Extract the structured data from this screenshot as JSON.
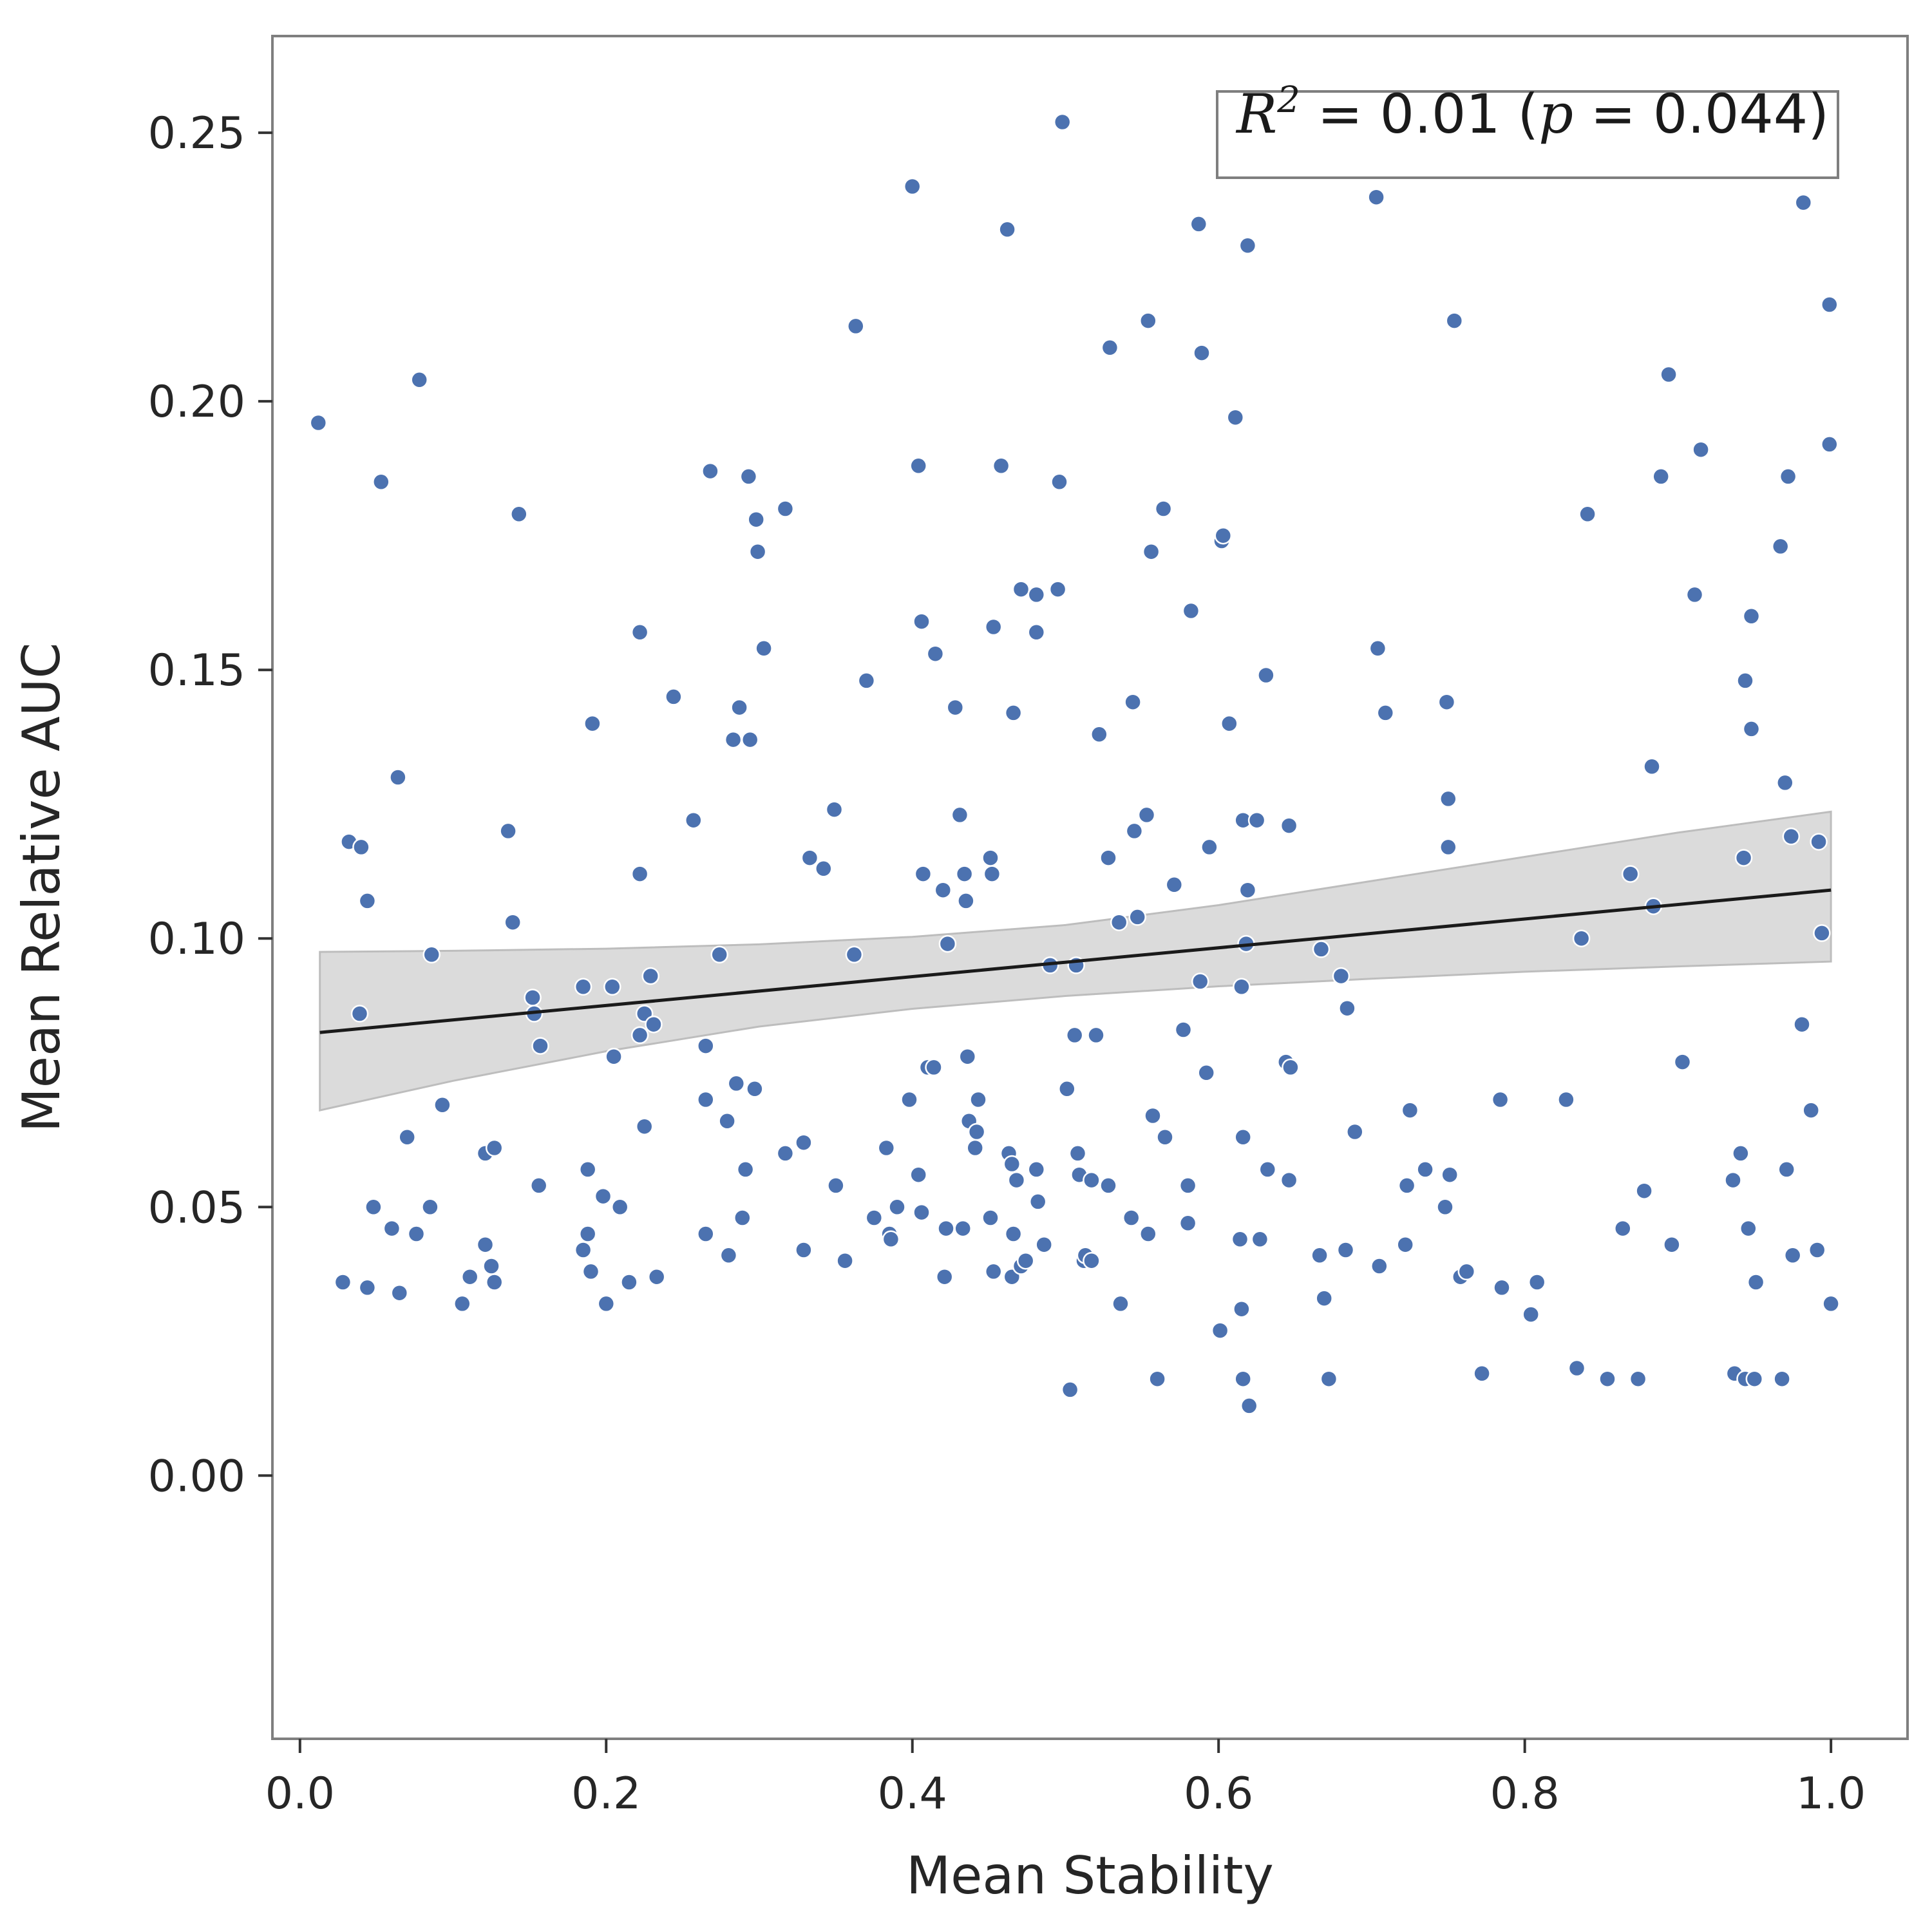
{
  "chart_data": {
    "type": "scatter",
    "title": "",
    "xlabel": "Mean Stability",
    "ylabel": "Mean Relative AUC",
    "xlim": [
      -0.018,
      1.05
    ],
    "ylim": [
      -0.049,
      0.268
    ],
    "xticks": [
      0.0,
      0.2,
      0.4,
      0.6,
      0.8,
      1.0
    ],
    "xtick_labels": [
      "0.0",
      "0.2",
      "0.4",
      "0.6",
      "0.8",
      "1.0"
    ],
    "yticks": [
      0.0,
      0.05,
      0.1,
      0.15,
      0.2,
      0.25
    ],
    "ytick_labels": [
      "0.00",
      "0.05",
      "0.10",
      "0.15",
      "0.20",
      "0.25"
    ],
    "grid": false,
    "colors": {
      "points": "#4c72b0",
      "fit_line": "#1a1a1a",
      "band": "#bdbdbd",
      "frame": "#7f7f7f"
    },
    "annotation": {
      "lhs": "R",
      "exponent": "2",
      "middle": " = 0.01 (",
      "p_symbol": "p",
      "rhs": " = 0.044)",
      "position": "top-right"
    },
    "regression": {
      "x": [
        0.013,
        1.0
      ],
      "y": [
        0.0825,
        0.109
      ],
      "ci_x": [
        0.013,
        0.1,
        0.2,
        0.3,
        0.4,
        0.5,
        0.6,
        0.7,
        0.8,
        0.9,
        1.0
      ],
      "ci_upper": [
        0.0975,
        0.0977,
        0.0981,
        0.0989,
        0.1003,
        0.1025,
        0.1062,
        0.1107,
        0.1152,
        0.1197,
        0.1236
      ],
      "ci_lower": [
        0.068,
        0.0735,
        0.079,
        0.0836,
        0.0869,
        0.0893,
        0.0911,
        0.0925,
        0.0938,
        0.0948,
        0.0957
      ]
    },
    "series": [
      {
        "points": [
          [
            0.012,
            0.196
          ],
          [
            0.078,
            0.204
          ],
          [
            0.053,
            0.185
          ],
          [
            0.143,
            0.179
          ],
          [
            0.032,
            0.118
          ],
          [
            0.04,
            0.117
          ],
          [
            0.044,
            0.107
          ],
          [
            0.064,
            0.13
          ],
          [
            0.136,
            0.12
          ],
          [
            0.139,
            0.103
          ],
          [
            0.086,
            0.097
          ],
          [
            0.039,
            0.086
          ],
          [
            0.093,
            0.069
          ],
          [
            0.07,
            0.063
          ],
          [
            0.121,
            0.06
          ],
          [
            0.127,
            0.061
          ],
          [
            0.156,
            0.054
          ],
          [
            0.048,
            0.05
          ],
          [
            0.085,
            0.05
          ],
          [
            0.06,
            0.046
          ],
          [
            0.076,
            0.045
          ],
          [
            0.121,
            0.043
          ],
          [
            0.125,
            0.039
          ],
          [
            0.111,
            0.037
          ],
          [
            0.028,
            0.036
          ],
          [
            0.044,
            0.035
          ],
          [
            0.065,
            0.034
          ],
          [
            0.106,
            0.032
          ],
          [
            0.127,
            0.036
          ],
          [
            0.152,
            0.089
          ],
          [
            0.153,
            0.086
          ],
          [
            0.157,
            0.08
          ],
          [
            0.185,
            0.091
          ],
          [
            0.204,
            0.091
          ],
          [
            0.205,
            0.078
          ],
          [
            0.222,
            0.082
          ],
          [
            0.225,
            0.086
          ],
          [
            0.229,
            0.093
          ],
          [
            0.231,
            0.084
          ],
          [
            0.225,
            0.065
          ],
          [
            0.191,
            0.14
          ],
          [
            0.222,
            0.157
          ],
          [
            0.222,
            0.112
          ],
          [
            0.244,
            0.145
          ],
          [
            0.257,
            0.122
          ],
          [
            0.268,
            0.187
          ],
          [
            0.274,
            0.097
          ],
          [
            0.265,
            0.08
          ],
          [
            0.265,
            0.07
          ],
          [
            0.279,
            0.066
          ],
          [
            0.185,
            0.042
          ],
          [
            0.188,
            0.045
          ],
          [
            0.188,
            0.057
          ],
          [
            0.198,
            0.052
          ],
          [
            0.209,
            0.05
          ],
          [
            0.19,
            0.038
          ],
          [
            0.2,
            0.032
          ],
          [
            0.215,
            0.036
          ],
          [
            0.233,
            0.037
          ],
          [
            0.265,
            0.045
          ],
          [
            0.28,
            0.041
          ],
          [
            0.289,
            0.048
          ],
          [
            0.291,
            0.057
          ],
          [
            0.285,
            0.073
          ],
          [
            0.297,
            0.072
          ],
          [
            0.287,
            0.143
          ],
          [
            0.283,
            0.137
          ],
          [
            0.294,
            0.137
          ],
          [
            0.293,
            0.186
          ],
          [
            0.298,
            0.178
          ],
          [
            0.299,
            0.172
          ],
          [
            0.303,
            0.154
          ],
          [
            0.317,
            0.18
          ],
          [
            0.317,
            0.06
          ],
          [
            0.329,
            0.062
          ],
          [
            0.329,
            0.042
          ],
          [
            0.333,
            0.115
          ],
          [
            0.342,
            0.113
          ],
          [
            0.349,
            0.124
          ],
          [
            0.35,
            0.054
          ],
          [
            0.356,
            0.04
          ],
          [
            0.362,
            0.097
          ],
          [
            0.363,
            0.214
          ],
          [
            0.37,
            0.148
          ],
          [
            0.375,
            0.048
          ],
          [
            0.383,
            0.061
          ],
          [
            0.385,
            0.045
          ],
          [
            0.386,
            0.044
          ],
          [
            0.39,
            0.05
          ],
          [
            0.398,
            0.07
          ],
          [
            0.4,
            0.24
          ],
          [
            0.404,
            0.188
          ],
          [
            0.406,
            0.159
          ],
          [
            0.407,
            0.112
          ],
          [
            0.404,
            0.056
          ],
          [
            0.406,
            0.049
          ],
          [
            0.41,
            0.076
          ],
          [
            0.414,
            0.076
          ],
          [
            0.415,
            0.153
          ],
          [
            0.42,
            0.109
          ],
          [
            0.421,
            0.037
          ],
          [
            0.422,
            0.046
          ],
          [
            0.423,
            0.099
          ],
          [
            0.428,
            0.143
          ],
          [
            0.431,
            0.123
          ],
          [
            0.434,
            0.112
          ],
          [
            0.435,
            0.107
          ],
          [
            0.436,
            0.078
          ],
          [
            0.437,
            0.066
          ],
          [
            0.433,
            0.046
          ],
          [
            0.441,
            0.061
          ],
          [
            0.442,
            0.064
          ],
          [
            0.443,
            0.07
          ],
          [
            0.451,
            0.115
          ],
          [
            0.452,
            0.112
          ],
          [
            0.453,
            0.158
          ],
          [
            0.451,
            0.048
          ],
          [
            0.453,
            0.038
          ],
          [
            0.458,
            0.188
          ],
          [
            0.462,
            0.232
          ],
          [
            0.463,
            0.06
          ],
          [
            0.465,
            0.058
          ],
          [
            0.466,
            0.142
          ],
          [
            0.466,
            0.045
          ],
          [
            0.468,
            0.055
          ],
          [
            0.465,
            0.037
          ],
          [
            0.471,
            0.039
          ],
          [
            0.471,
            0.165
          ],
          [
            0.474,
            0.04
          ],
          [
            0.481,
            0.164
          ],
          [
            0.481,
            0.157
          ],
          [
            0.481,
            0.057
          ],
          [
            0.482,
            0.051
          ],
          [
            0.486,
            0.043
          ],
          [
            0.49,
            0.095
          ],
          [
            0.495,
            0.165
          ],
          [
            0.496,
            0.185
          ],
          [
            0.498,
            0.252
          ],
          [
            0.501,
            0.072
          ],
          [
            0.503,
            0.016
          ],
          [
            0.506,
            0.082
          ],
          [
            0.507,
            0.095
          ],
          [
            0.508,
            0.06
          ],
          [
            0.509,
            0.056
          ],
          [
            0.512,
            0.04
          ],
          [
            0.513,
            0.041
          ],
          [
            0.517,
            0.04
          ],
          [
            0.517,
            0.055
          ],
          [
            0.52,
            0.082
          ],
          [
            0.522,
            0.138
          ],
          [
            0.528,
            0.115
          ],
          [
            0.529,
            0.21
          ],
          [
            0.528,
            0.054
          ],
          [
            0.535,
            0.103
          ],
          [
            0.536,
            0.032
          ],
          [
            0.543,
            0.048
          ],
          [
            0.544,
            0.144
          ],
          [
            0.545,
            0.12
          ],
          [
            0.547,
            0.104
          ],
          [
            0.553,
            0.123
          ],
          [
            0.554,
            0.215
          ],
          [
            0.554,
            0.045
          ],
          [
            0.556,
            0.172
          ],
          [
            0.557,
            0.067
          ],
          [
            0.56,
            0.018
          ],
          [
            0.564,
            0.18
          ],
          [
            0.565,
            0.063
          ],
          [
            0.571,
            0.11
          ],
          [
            0.577,
            0.083
          ],
          [
            0.58,
            0.054
          ],
          [
            0.58,
            0.047
          ],
          [
            0.582,
            0.161
          ],
          [
            0.587,
            0.233
          ],
          [
            0.588,
            0.092
          ],
          [
            0.589,
            0.209
          ],
          [
            0.592,
            0.075
          ],
          [
            0.594,
            0.117
          ],
          [
            0.601,
            0.027
          ],
          [
            0.602,
            0.174
          ],
          [
            0.603,
            0.175
          ],
          [
            0.607,
            0.14
          ],
          [
            0.611,
            0.197
          ],
          [
            0.614,
            0.044
          ],
          [
            0.615,
            0.031
          ],
          [
            0.615,
            0.091
          ],
          [
            0.616,
            0.063
          ],
          [
            0.616,
            0.018
          ],
          [
            0.616,
            0.122
          ],
          [
            0.618,
            0.099
          ],
          [
            0.619,
            0.109
          ],
          [
            0.619,
            0.229
          ],
          [
            0.62,
            0.013
          ],
          [
            0.625,
            0.122
          ],
          [
            0.627,
            0.044
          ],
          [
            0.631,
            0.149
          ],
          [
            0.632,
            0.057
          ],
          [
            0.644,
            0.077
          ],
          [
            0.646,
            0.121
          ],
          [
            0.646,
            0.055
          ],
          [
            0.647,
            0.076
          ],
          [
            0.666,
            0.041
          ],
          [
            0.667,
            0.098
          ],
          [
            0.669,
            0.033
          ],
          [
            0.672,
            0.018
          ],
          [
            0.68,
            0.093
          ],
          [
            0.683,
            0.042
          ],
          [
            0.684,
            0.087
          ],
          [
            0.689,
            0.064
          ],
          [
            0.703,
            0.238
          ],
          [
            0.704,
            0.154
          ],
          [
            0.705,
            0.039
          ],
          [
            0.709,
            0.142
          ],
          [
            0.722,
            0.043
          ],
          [
            0.723,
            0.054
          ],
          [
            0.725,
            0.068
          ],
          [
            0.735,
            0.057
          ],
          [
            0.748,
            0.05
          ],
          [
            0.749,
            0.144
          ],
          [
            0.75,
            0.126
          ],
          [
            0.75,
            0.117
          ],
          [
            0.751,
            0.056
          ],
          [
            0.754,
            0.215
          ],
          [
            0.758,
            0.037
          ],
          [
            0.762,
            0.038
          ],
          [
            0.772,
            0.019
          ],
          [
            0.784,
            0.07
          ],
          [
            0.785,
            0.035
          ],
          [
            0.804,
            0.03
          ],
          [
            0.808,
            0.036
          ],
          [
            0.827,
            0.07
          ],
          [
            0.834,
            0.02
          ],
          [
            0.837,
            0.1
          ],
          [
            0.841,
            0.179
          ],
          [
            0.854,
            0.018
          ],
          [
            0.864,
            0.046
          ],
          [
            0.869,
            0.112
          ],
          [
            0.874,
            0.018
          ],
          [
            0.878,
            0.053
          ],
          [
            0.883,
            0.132
          ],
          [
            0.884,
            0.106
          ],
          [
            0.889,
            0.186
          ],
          [
            0.894,
            0.205
          ],
          [
            0.896,
            0.043
          ],
          [
            0.903,
            0.077
          ],
          [
            0.911,
            0.164
          ],
          [
            0.914,
            0.191
          ],
          [
            0.915,
            0.191
          ],
          [
            0.936,
            0.055
          ],
          [
            0.937,
            0.019
          ],
          [
            0.941,
            0.06
          ],
          [
            0.943,
            0.115
          ],
          [
            0.944,
            0.148
          ],
          [
            0.944,
            0.018
          ],
          [
            0.946,
            0.046
          ],
          [
            0.948,
            0.139
          ],
          [
            0.948,
            0.16
          ],
          [
            0.95,
            0.018
          ],
          [
            0.951,
            0.036
          ],
          [
            0.967,
            0.173
          ],
          [
            0.968,
            0.018
          ],
          [
            0.97,
            0.129
          ],
          [
            0.971,
            0.057
          ],
          [
            0.972,
            0.186
          ],
          [
            0.974,
            0.119
          ],
          [
            0.975,
            0.041
          ],
          [
            0.981,
            0.084
          ],
          [
            0.982,
            0.237
          ],
          [
            0.987,
            0.068
          ],
          [
            0.991,
            0.042
          ],
          [
            0.992,
            0.118
          ],
          [
            0.994,
            0.101
          ],
          [
            0.999,
            0.218
          ],
          [
            0.999,
            0.192
          ],
          [
            1.0,
            0.032
          ]
        ]
      }
    ]
  }
}
